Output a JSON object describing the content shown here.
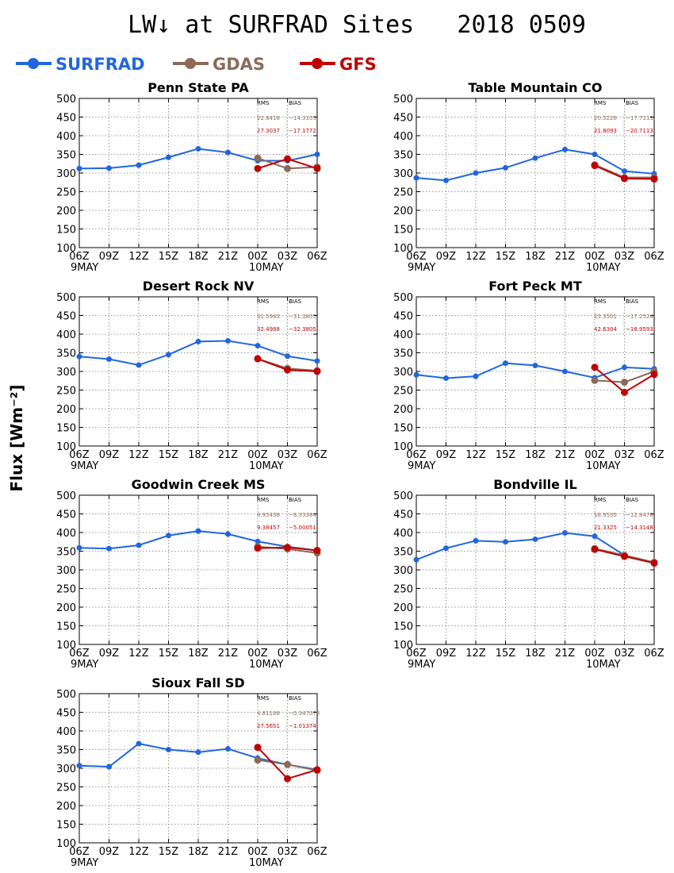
{
  "header": {
    "title": "LW↓ at SURFRAD Sites   2018 0509",
    "ylabel": "Flux [Wm⁻²]"
  },
  "legend": [
    {
      "name": "SURFRAD",
      "color": "#2266dd"
    },
    {
      "name": "GDAS",
      "color": "#8b6a5a"
    },
    {
      "name": "GFS",
      "color": "#c00000"
    }
  ],
  "stats_header": {
    "rms": "RMS",
    "bias": "BIAS"
  },
  "chart_data": [
    {
      "type": "line",
      "title": "Penn State PA",
      "categories": [
        "06Z",
        "09Z",
        "12Z",
        "15Z",
        "18Z",
        "21Z",
        "00Z",
        "03Z",
        "06Z"
      ],
      "date_labels": [
        "9MAY",
        "",
        "",
        "",
        "",
        "",
        "10MAY",
        "",
        ""
      ],
      "ylim": [
        100,
        500
      ],
      "yticks": [
        100,
        150,
        200,
        250,
        300,
        350,
        400,
        450,
        500
      ],
      "grid": true,
      "series": [
        {
          "name": "SURFRAD",
          "values": [
            312,
            313,
            321,
            342,
            365,
            355,
            333,
            333,
            350
          ]
        },
        {
          "name": "GDAS",
          "values": [
            null,
            null,
            null,
            null,
            null,
            null,
            340,
            312,
            316
          ]
        },
        {
          "name": "GFS",
          "values": [
            null,
            null,
            null,
            null,
            null,
            null,
            312,
            338,
            312
          ]
        }
      ],
      "stats": {
        "gdas_rms": "22.8418",
        "gdas_bias": "−14.3105",
        "gfs_rms": "27.3037",
        "gfs_bias": "−17.1772"
      }
    },
    {
      "type": "line",
      "title": "Table Mountain CO",
      "categories": [
        "06Z",
        "09Z",
        "12Z",
        "15Z",
        "18Z",
        "21Z",
        "00Z",
        "03Z",
        "06Z"
      ],
      "date_labels": [
        "9MAY",
        "",
        "",
        "",
        "",
        "",
        "10MAY",
        "",
        ""
      ],
      "ylim": [
        100,
        500
      ],
      "yticks": [
        100,
        150,
        200,
        250,
        300,
        350,
        400,
        450,
        500
      ],
      "grid": true,
      "series": [
        {
          "name": "SURFRAD",
          "values": [
            287,
            280,
            300,
            314,
            340,
            363,
            350,
            305,
            298
          ]
        },
        {
          "name": "GDAS",
          "values": [
            null,
            null,
            null,
            null,
            null,
            null,
            322,
            288,
            288
          ]
        },
        {
          "name": "GFS",
          "values": [
            null,
            null,
            null,
            null,
            null,
            null,
            320,
            285,
            284
          ]
        }
      ],
      "stats": {
        "gdas_rms": "20.5226",
        "gdas_bias": "−17.7113",
        "gfs_rms": "21.8093",
        "gfs_bias": "−20.7113"
      }
    },
    {
      "type": "line",
      "title": "Desert Rock NV",
      "categories": [
        "06Z",
        "09Z",
        "12Z",
        "15Z",
        "18Z",
        "21Z",
        "00Z",
        "03Z",
        "06Z"
      ],
      "date_labels": [
        "9MAY",
        "",
        "",
        "",
        "",
        "",
        "10MAY",
        "",
        ""
      ],
      "ylim": [
        100,
        500
      ],
      "yticks": [
        100,
        150,
        200,
        250,
        300,
        350,
        400,
        450,
        500
      ],
      "grid": true,
      "series": [
        {
          "name": "SURFRAD",
          "values": [
            340,
            333,
            317,
            345,
            380,
            382,
            369,
            341,
            328
          ]
        },
        {
          "name": "GDAS",
          "values": [
            null,
            null,
            null,
            null,
            null,
            null,
            334,
            308,
            302
          ]
        },
        {
          "name": "GFS",
          "values": [
            null,
            null,
            null,
            null,
            null,
            null,
            334,
            304,
            300
          ]
        }
      ],
      "stats": {
        "gdas_rms": "31.5943",
        "gdas_bias": "−31.3805",
        "gfs_rms": "32.4988",
        "gfs_bias": "−32.3805"
      }
    },
    {
      "type": "line",
      "title": "Fort Peck MT",
      "categories": [
        "06Z",
        "09Z",
        "12Z",
        "15Z",
        "18Z",
        "21Z",
        "00Z",
        "03Z",
        "06Z"
      ],
      "date_labels": [
        "9MAY",
        "",
        "",
        "",
        "",
        "",
        "10MAY",
        "",
        ""
      ],
      "ylim": [
        100,
        500
      ],
      "yticks": [
        100,
        150,
        200,
        250,
        300,
        350,
        400,
        450,
        500
      ],
      "grid": true,
      "series": [
        {
          "name": "SURFRAD",
          "values": [
            291,
            282,
            287,
            322,
            316,
            300,
            283,
            311,
            307
          ]
        },
        {
          "name": "GDAS",
          "values": [
            null,
            null,
            null,
            null,
            null,
            null,
            276,
            271,
            300
          ]
        },
        {
          "name": "GFS",
          "values": [
            null,
            null,
            null,
            null,
            null,
            null,
            311,
            244,
            292
          ]
        }
      ],
      "stats": {
        "gdas_rms": "23.3501",
        "gdas_bias": "−17.2524",
        "gfs_rms": "42.6304",
        "gfs_bias": "−18.9593"
      }
    },
    {
      "type": "line",
      "title": "Goodwin Creek MS",
      "categories": [
        "06Z",
        "09Z",
        "12Z",
        "15Z",
        "18Z",
        "21Z",
        "00Z",
        "03Z",
        "06Z"
      ],
      "date_labels": [
        "9MAY",
        "",
        "",
        "",
        "",
        "",
        "10MAY",
        "",
        ""
      ],
      "ylim": [
        100,
        500
      ],
      "yticks": [
        100,
        150,
        200,
        250,
        300,
        350,
        400,
        450,
        500
      ],
      "grid": true,
      "series": [
        {
          "name": "SURFRAD",
          "values": [
            359,
            357,
            366,
            392,
            404,
            396,
            376,
            362,
            352
          ]
        },
        {
          "name": "GDAS",
          "values": [
            null,
            null,
            null,
            null,
            null,
            null,
            362,
            356,
            345
          ]
        },
        {
          "name": "GFS",
          "values": [
            null,
            null,
            null,
            null,
            null,
            null,
            358,
            360,
            352
          ]
        }
      ],
      "stats": {
        "gdas_rms": "8.95438",
        "gdas_bias": "−8.33384",
        "gfs_rms": "9.38457",
        "gfs_bias": "−5.00051"
      }
    },
    {
      "type": "line",
      "title": "Bondville IL",
      "categories": [
        "06Z",
        "09Z",
        "12Z",
        "15Z",
        "18Z",
        "21Z",
        "00Z",
        "03Z",
        "06Z"
      ],
      "date_labels": [
        "9MAY",
        "",
        "",
        "",
        "",
        "",
        "10MAY",
        "",
        ""
      ],
      "ylim": [
        100,
        500
      ],
      "yticks": [
        100,
        150,
        200,
        250,
        300,
        350,
        400,
        450,
        500
      ],
      "grid": true,
      "series": [
        {
          "name": "SURFRAD",
          "values": [
            327,
            358,
            378,
            375,
            382,
            399,
            390,
            339,
            320
          ]
        },
        {
          "name": "GDAS",
          "values": [
            null,
            null,
            null,
            null,
            null,
            null,
            357,
            339,
            320
          ]
        },
        {
          "name": "GFS",
          "values": [
            null,
            null,
            null,
            null,
            null,
            null,
            355,
            336,
            318
          ]
        }
      ],
      "stats": {
        "gdas_rms": "18.9535",
        "gdas_bias": "−12.8478",
        "gfs_rms": "21.3325",
        "gfs_bias": "−14.3148"
      }
    },
    {
      "type": "line",
      "title": "Sioux Fall SD",
      "categories": [
        "06Z",
        "09Z",
        "12Z",
        "15Z",
        "18Z",
        "21Z",
        "00Z",
        "03Z",
        "06Z"
      ],
      "date_labels": [
        "9MAY",
        "",
        "",
        "",
        "",
        "",
        "10MAY",
        "",
        ""
      ],
      "ylim": [
        100,
        500
      ],
      "yticks": [
        100,
        150,
        200,
        250,
        300,
        350,
        400,
        450,
        500
      ],
      "grid": true,
      "series": [
        {
          "name": "SURFRAD",
          "values": [
            307,
            304,
            366,
            350,
            343,
            352,
            327,
            310,
            296
          ]
        },
        {
          "name": "GDAS",
          "values": [
            null,
            null,
            null,
            null,
            null,
            null,
            322,
            310,
            294
          ]
        },
        {
          "name": "GFS",
          "values": [
            null,
            null,
            null,
            null,
            null,
            null,
            356,
            272,
            296
          ]
        }
      ],
      "stats": {
        "gdas_rms": "4.81188",
        "gdas_bias": "−0.347078",
        "gfs_rms": "27.5651",
        "gfs_bias": "−1.01374"
      }
    }
  ]
}
